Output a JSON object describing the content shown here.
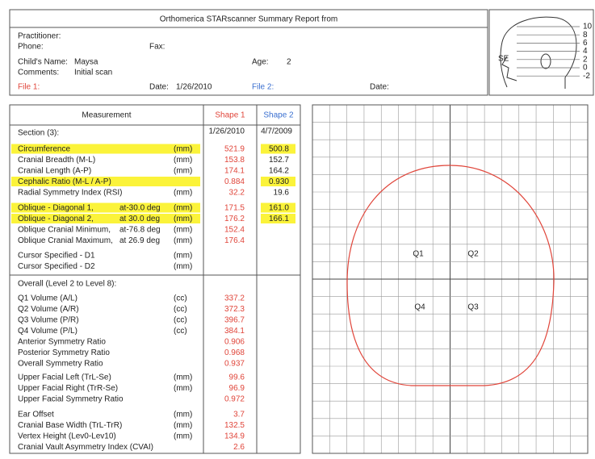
{
  "header": {
    "title": "Orthomerica STARscanner Summary Report  from",
    "practitioner_label": "Practitioner:",
    "phone_label": "Phone:",
    "fax_label": "Fax:",
    "child_name_label": "Child's Name:",
    "child_name": "Maysa",
    "age_label": "Age:",
    "age": "2",
    "comments_label": "Comments:",
    "comments": "Initial scan",
    "file1_label": "File 1:",
    "file1_date_label": "Date:",
    "file1_date": "1/26/2010",
    "file2_label": "File 2:",
    "file2_date_label": "Date:"
  },
  "head_diagram": {
    "levels": [
      "10",
      "8",
      "6",
      "4",
      "2",
      "0",
      "-2"
    ],
    "se_label": "SE"
  },
  "table": {
    "headers": [
      "Measurement",
      "Shape 1",
      "Shape 2"
    ],
    "section": {
      "label": "Section (3):",
      "shape1": "1/26/2010",
      "shape2": "4/7/2009"
    },
    "groups": [
      {
        "rows": [
          {
            "label": "Circumference",
            "unit": "(mm)",
            "shape1": "521.9",
            "shape2": "500.8",
            "highlight": true
          },
          {
            "label": "Cranial Breadth (M-L)",
            "unit": "(mm)",
            "shape1": "153.8",
            "shape2": "152.7"
          },
          {
            "label": "Cranial Length (A-P)",
            "unit": "(mm)",
            "shape1": "174.1",
            "shape2": "164.2"
          },
          {
            "label": "Cephalic Ratio (M-L / A-P)",
            "shape1": "0.884",
            "shape2": "0.930",
            "highlight": true
          },
          {
            "label": "Radial Symmetry Index (RSI)",
            "unit": "(mm)",
            "shape1": "32.2",
            "shape2": "19.6"
          }
        ]
      },
      {
        "rows": [
          {
            "label": "Oblique - Diagonal 1,",
            "angle": "at-30.0 deg",
            "unit": "(mm)",
            "shape1": "171.5",
            "shape2": "161.0",
            "highlight": true
          },
          {
            "label": "Oblique - Diagonal 2,",
            "angle": "at 30.0 deg",
            "unit": "(mm)",
            "shape1": "176.2",
            "shape2": "166.1",
            "highlight": true
          },
          {
            "label": "Oblique Cranial Minimum,",
            "angle": "at-76.8 deg",
            "unit": "(mm)",
            "shape1": "152.4"
          },
          {
            "label": "Oblique Cranial Maximum,",
            "angle": "at 26.9 deg",
            "unit": "(mm)",
            "shape1": "176.4"
          }
        ]
      },
      {
        "rows": [
          {
            "label": "Cursor Specified - D1",
            "unit": "(mm)"
          },
          {
            "label": "Cursor Specified - D2",
            "unit": "(mm)"
          }
        ]
      },
      {
        "heading": "Overall (Level 2 to Level 8):",
        "rows": [
          {
            "label": "Q1 Volume (A/L)",
            "unit": "(cc)",
            "shape1": "337.2"
          },
          {
            "label": "Q2 Volume (A/R)",
            "unit": "(cc)",
            "shape1": "372.3"
          },
          {
            "label": "Q3 Volume (P/R)",
            "unit": "(cc)",
            "shape1": "396.7"
          },
          {
            "label": "Q4 Volume (P/L)",
            "unit": "(cc)",
            "shape1": "384.1"
          },
          {
            "label": "Anterior Symmetry Ratio",
            "shape1": "0.906"
          },
          {
            "label": "Posterior Symmetry Ratio",
            "shape1": "0.968"
          },
          {
            "label": "Overall Symmetry Ratio",
            "shape1": "0.937"
          }
        ]
      },
      {
        "rows": [
          {
            "label": "Upper Facial Left (TrL-Se)",
            "unit": "(mm)",
            "shape1": "99.6"
          },
          {
            "label": "Upper Facial Right (TrR-Se)",
            "unit": "(mm)",
            "shape1": "96.9"
          },
          {
            "label": "Upper Facial Symmetry Ratio",
            "shape1": "0.972"
          }
        ]
      },
      {
        "rows": [
          {
            "label": "Ear Offset",
            "unit": "(mm)",
            "shape1": "3.7"
          },
          {
            "label": "Cranial Base Width (TrL-TrR)",
            "unit": "(mm)",
            "shape1": "132.5"
          },
          {
            "label": "Vertex Height (Lev0-Lev10)",
            "unit": "(mm)",
            "shape1": "134.9"
          },
          {
            "label": "Cranial Vault Asymmetry Index (CVAI)",
            "shape1": "2.6"
          }
        ]
      }
    ]
  },
  "grid": {
    "quadrants": [
      "Q1",
      "Q2",
      "Q3",
      "Q4"
    ]
  }
}
